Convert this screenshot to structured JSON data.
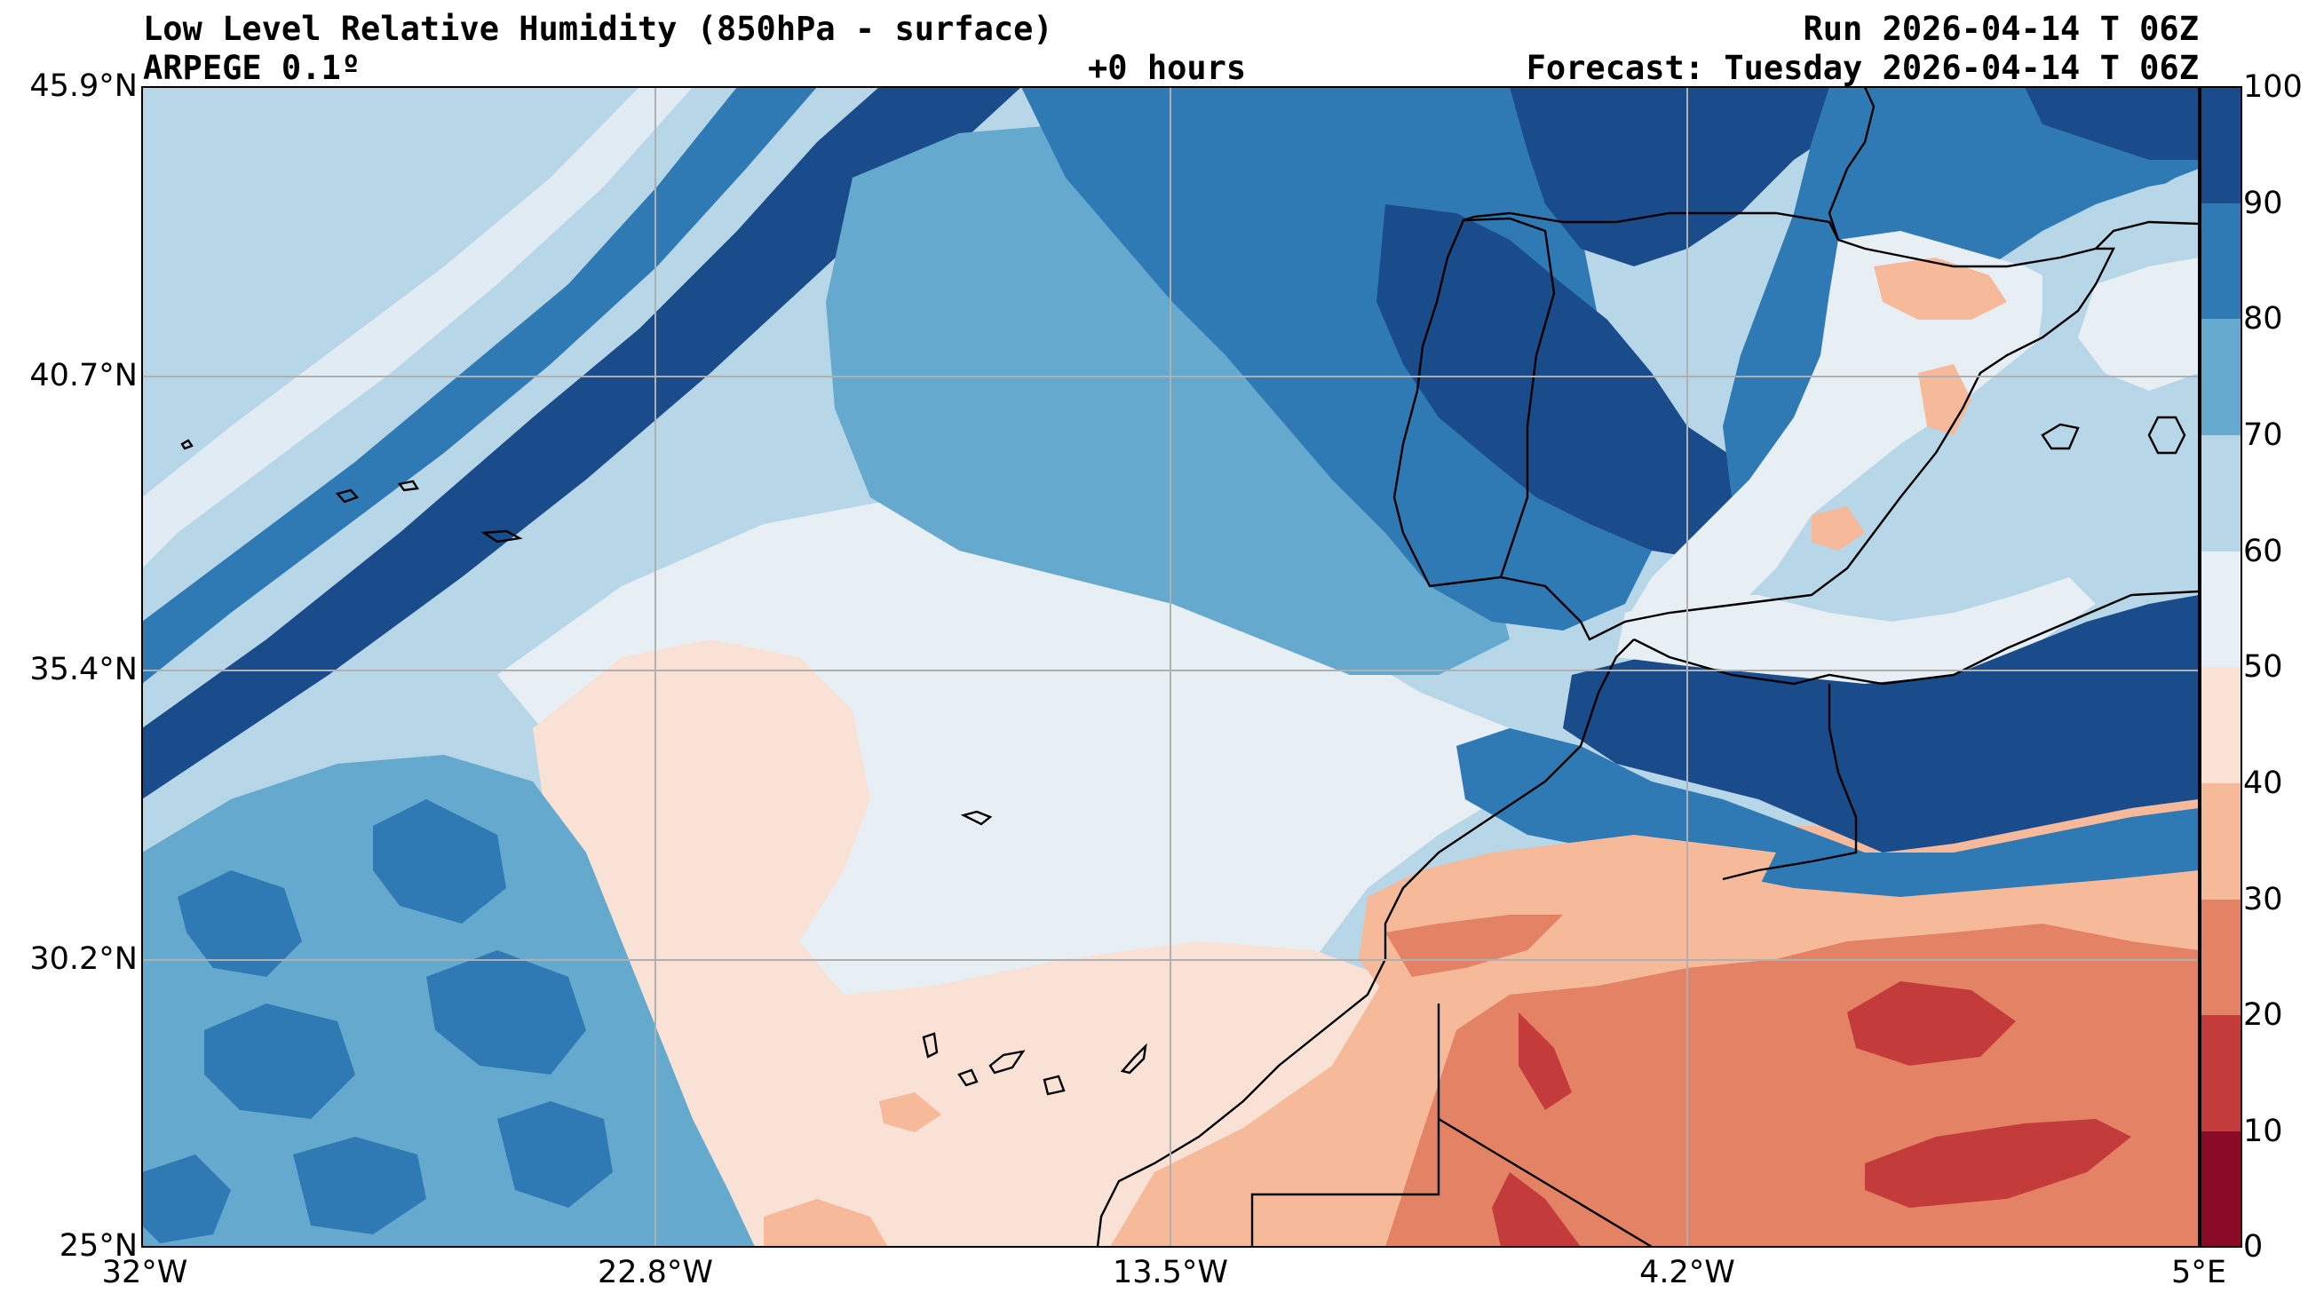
{
  "header": {
    "title": "Low Level Relative Humidity (850hPa - surface)",
    "model": "ARPEGE 0.1º",
    "lead_time": "+0 hours",
    "run": "Run 2026-04-14 T 06Z",
    "forecast": "Forecast: Tuesday 2026-04-14 T 06Z"
  },
  "axes": {
    "lat_labels": [
      "45.9°N",
      "40.7°N",
      "35.4°N",
      "30.2°N",
      "25°N"
    ],
    "lon_labels": [
      "32°W",
      "22.8°W",
      "13.5°W",
      "4.2°W",
      "5°E"
    ]
  },
  "colorbar": {
    "ticks": [
      "100",
      "90",
      "80",
      "70",
      "60",
      "50",
      "40",
      "30",
      "20",
      "10",
      "0"
    ],
    "colors": [
      "#1a4c8b",
      "#2f79b5",
      "#66a9cf",
      "#b7d7e8",
      "#e7eef4",
      "#f9e1d5",
      "#f6b99a",
      "#e38265",
      "#c43b3b",
      "#8b0a26"
    ]
  },
  "map": {
    "extent_lon": [
      -32,
      5
    ],
    "extent_lat": [
      25,
      45.9
    ],
    "gridlines": true
  }
}
